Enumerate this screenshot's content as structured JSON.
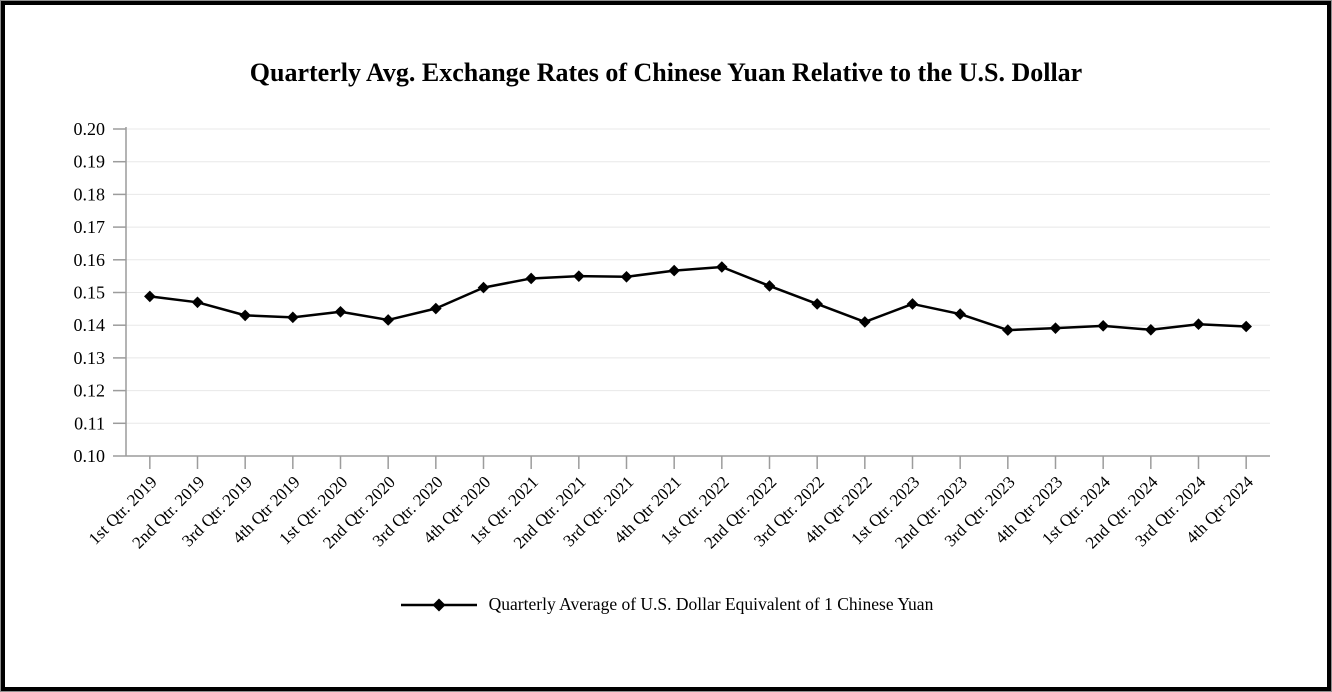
{
  "title": "Quarterly Avg. Exchange Rates of Chinese Yuan Relative to the U.S. Dollar",
  "legend": {
    "label": "Quarterly Average of U.S. Dollar Equivalent of 1 Chinese Yuan"
  },
  "chart_data": {
    "type": "line",
    "title": "Quarterly Avg. Exchange Rates of Chinese Yuan Relative to the U.S. Dollar",
    "xlabel": "",
    "ylabel": "",
    "ylim": [
      0.1,
      0.2
    ],
    "ytick_labels": [
      "0.20",
      "0.19",
      "0.18",
      "0.17",
      "0.16",
      "0.15",
      "0.14",
      "0.13",
      "0.12",
      "0.11",
      "0.10"
    ],
    "grid": "horizontal",
    "legend_position": "bottom",
    "marker": "diamond",
    "categories": [
      "1st Qtr. 2019",
      "2nd Qtr. 2019",
      "3rd Qtr. 2019",
      "4th Qtr 2019",
      "1st Qtr. 2020",
      "2nd Qtr. 2020",
      "3rd Qtr. 2020",
      "4th Qtr 2020",
      "1st Qtr. 2021",
      "2nd Qtr. 2021",
      "3rd Qtr. 2021",
      "4th Qtr 2021",
      "1st Qtr. 2022",
      "2nd Qtr. 2022",
      "3rd Qtr. 2022",
      "4th Qtr 2022",
      "1st Qtr. 2023",
      "2nd Qtr. 2023",
      "3rd Qtr. 2023",
      "4th Qtr 2023",
      "1st Qtr. 2024",
      "2nd Qtr. 2024",
      "3rd Qtr. 2024",
      "4th Qtr 2024"
    ],
    "series": [
      {
        "name": "Quarterly Average of U.S. Dollar Equivalent of 1 Chinese Yuan",
        "values": [
          0.1488,
          0.147,
          0.143,
          0.1424,
          0.1441,
          0.1416,
          0.1451,
          0.1515,
          0.1543,
          0.155,
          0.1548,
          0.1567,
          0.1578,
          0.152,
          0.1465,
          0.141,
          0.1465,
          0.1434,
          0.1385,
          0.1391,
          0.1398,
          0.1386,
          0.1403,
          0.1396
        ]
      }
    ],
    "colors": {
      "line": "#000000",
      "marker": "#000000",
      "grid": "#e8e8e8",
      "axis": "#9c9c9c",
      "text": "#000000"
    }
  }
}
